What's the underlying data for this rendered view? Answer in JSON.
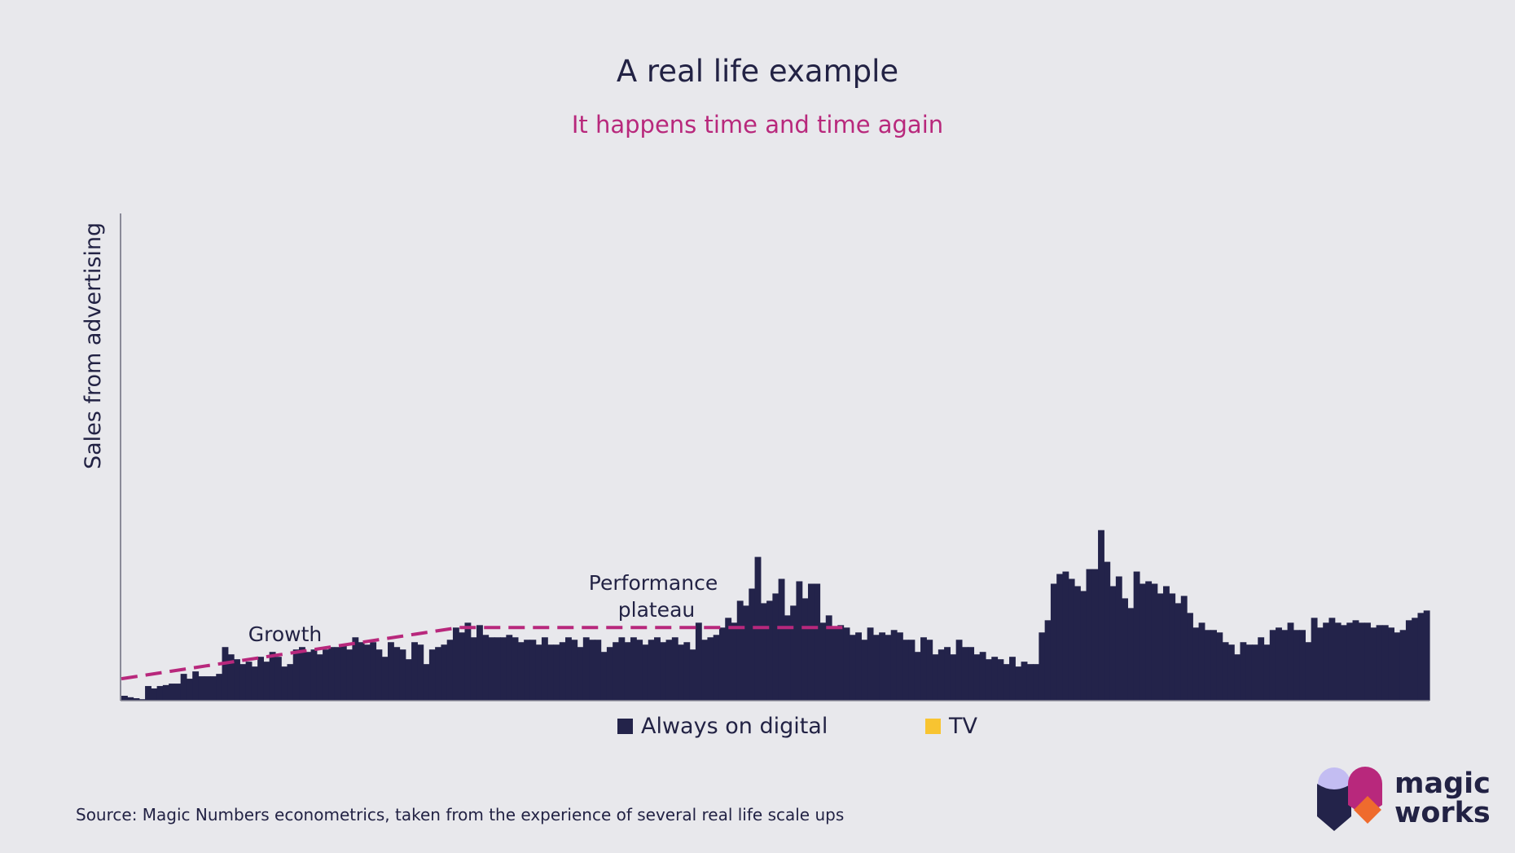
{
  "title": "A real life example",
  "subtitle": "It happens time and time again",
  "source": "Source: Magic Numbers econometrics, taken from the experience of several real life scale ups",
  "brand": {
    "line1": "magic",
    "line2": "works"
  },
  "colors": {
    "digital": "#23234a",
    "tv": "#f8c431",
    "trend": "#b8287c",
    "background": "#e8e8ec"
  },
  "chart_data": {
    "type": "bar",
    "stacked": true,
    "title": "A real life example",
    "subtitle": "It happens time and time again",
    "ylabel": "Sales from advertising",
    "xlabel": "",
    "ylim": [
      0,
      100
    ],
    "x_ticks": "none",
    "legend_position": "bottom-center",
    "series": [
      {
        "name": "Always on digital",
        "values": [
          1,
          0.7,
          0.5,
          0.3,
          3,
          2.5,
          3,
          3.2,
          3.5,
          3.5,
          5.5,
          4.5,
          6,
          5,
          5,
          5,
          5.5,
          11,
          9.5,
          8.5,
          7.5,
          8,
          7,
          9,
          8,
          10,
          9,
          7,
          7.5,
          10.5,
          11,
          10,
          10.5,
          9.5,
          10.5,
          11,
          11,
          11.5,
          10.5,
          13,
          12,
          11.5,
          12,
          10.5,
          9,
          12,
          11,
          10.5,
          8.5,
          12,
          11.5,
          7.5,
          10.5,
          11,
          11.5,
          12.5,
          15,
          14,
          16,
          13,
          15.5,
          13.5,
          13,
          13,
          13,
          13.5,
          13,
          12,
          12.5,
          12.5,
          11.5,
          13,
          11.5,
          11.5,
          12,
          13,
          12.5,
          11,
          13,
          12.5,
          12.5,
          10,
          11,
          12,
          13,
          12,
          13,
          12.5,
          11.5,
          12.5,
          13,
          12,
          12.5,
          13,
          11.5,
          12,
          10.5,
          16,
          12.5,
          13,
          13.5,
          15,
          17,
          16,
          20.5,
          19.5,
          23,
          29.5,
          20,
          20.5,
          22,
          25,
          17.5,
          19.5,
          24.5,
          21,
          24,
          24,
          16,
          17.5,
          15,
          15.5,
          15,
          13.5,
          14,
          12.5,
          15,
          13.5,
          14,
          13.5,
          14.5,
          14,
          12.5,
          12.5,
          10,
          13,
          12.5,
          9.5,
          10.5,
          11,
          9.5,
          12.5,
          11,
          11,
          9.5,
          10,
          8.5,
          9,
          8.5,
          7.5,
          9,
          7,
          8,
          7.5,
          7.5,
          14,
          16.5,
          24,
          26,
          26.5,
          25,
          23.5,
          22.5,
          27,
          27,
          35,
          28.5,
          23.5,
          25.5,
          21,
          19,
          26.5,
          24,
          24.5,
          24,
          22,
          23.5,
          22,
          20,
          21.5,
          18,
          15,
          16,
          14.5,
          14.5,
          14,
          12,
          11.5,
          9.5,
          12,
          11.5,
          11.5,
          13,
          11.5,
          14.5,
          15,
          14.5,
          16,
          14.5,
          14.5,
          12,
          17,
          15,
          16,
          17,
          16,
          15.5,
          16,
          16.5,
          16,
          16,
          15,
          15.5,
          15.5,
          15,
          14,
          14.5,
          16.5,
          17,
          18,
          18.5
        ]
      },
      {
        "name": "TV",
        "values": [
          0,
          0,
          0,
          0,
          0,
          0,
          0,
          0,
          0,
          0,
          0,
          0,
          0,
          0,
          0,
          0,
          0,
          0,
          0,
          0,
          0,
          0,
          0,
          0,
          0,
          0,
          0,
          0,
          0,
          0,
          0,
          0,
          0,
          0,
          0,
          0,
          0,
          0,
          0,
          0,
          0,
          0,
          0,
          0,
          0,
          0,
          0,
          0,
          0,
          0,
          0,
          0,
          0,
          0,
          0,
          0,
          0,
          0,
          0,
          0,
          0,
          0,
          0,
          0,
          0,
          0,
          0,
          0,
          0,
          0,
          0,
          0,
          0,
          0,
          0,
          0,
          0,
          0,
          0,
          0,
          0,
          0,
          0,
          0,
          0,
          0,
          0,
          0,
          0,
          0,
          0,
          0,
          0,
          0,
          0,
          0,
          0,
          0,
          0,
          0,
          0,
          0,
          0,
          0,
          0,
          0,
          0,
          0,
          0,
          0,
          0,
          0,
          0,
          0,
          0,
          0,
          0,
          0,
          0,
          0,
          0,
          0,
          0,
          0,
          0,
          0,
          0,
          0,
          0,
          0,
          0,
          0,
          0,
          0,
          0,
          0,
          0,
          0,
          0,
          0,
          0,
          0,
          0,
          0,
          0,
          0,
          0,
          0,
          0,
          0,
          0,
          0,
          0,
          0,
          0,
          0,
          0,
          0,
          0,
          0,
          0,
          0,
          0,
          0,
          0,
          0,
          0,
          0,
          0,
          0,
          0,
          0,
          0,
          0,
          0,
          0,
          0,
          0,
          0,
          0,
          0,
          0,
          0,
          0,
          0,
          0,
          0,
          0,
          0,
          0,
          0,
          0,
          0,
          0,
          0,
          0,
          0,
          0,
          0,
          0,
          0,
          0,
          0,
          0,
          0,
          0,
          0,
          0,
          0,
          0,
          0,
          0,
          0,
          0,
          0,
          0,
          0
        ]
      }
    ],
    "annotations": [
      {
        "text": "Growth",
        "from": 0,
        "to": 57,
        "trend_start": 4.5,
        "trend_end": 15
      },
      {
        "text": "Performance plateau",
        "from": 57,
        "to": 123,
        "level": 15
      }
    ]
  }
}
